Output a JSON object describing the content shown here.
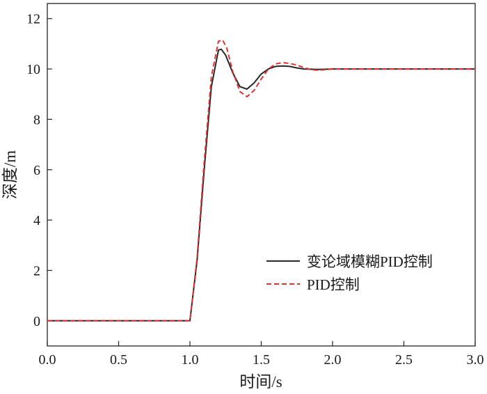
{
  "chart_data": {
    "type": "line",
    "xlabel": "时间/s",
    "ylabel": "深度/m",
    "xlim": [
      0,
      3
    ],
    "ylim": [
      -1,
      12.6
    ],
    "xticks": [
      "0.0",
      "0.5",
      "1.0",
      "1.5",
      "2.0",
      "2.5",
      "3.0"
    ],
    "yticks": [
      "0",
      "2",
      "4",
      "6",
      "8",
      "10",
      "12"
    ],
    "grid": false,
    "legend_position": "right-middle",
    "series": [
      {
        "name": "变论域模糊PID控制",
        "color": "#262626",
        "style": "solid",
        "points": [
          [
            0,
            0
          ],
          [
            1.0,
            0
          ],
          [
            1.05,
            2.4
          ],
          [
            1.1,
            6.0
          ],
          [
            1.15,
            9.3
          ],
          [
            1.2,
            10.75
          ],
          [
            1.22,
            10.78
          ],
          [
            1.25,
            10.55
          ],
          [
            1.3,
            9.85
          ],
          [
            1.35,
            9.3
          ],
          [
            1.4,
            9.2
          ],
          [
            1.45,
            9.45
          ],
          [
            1.5,
            9.8
          ],
          [
            1.55,
            10.0
          ],
          [
            1.6,
            10.1
          ],
          [
            1.65,
            10.12
          ],
          [
            1.7,
            10.1
          ],
          [
            1.75,
            10.04
          ],
          [
            1.8,
            10.0
          ],
          [
            1.9,
            9.98
          ],
          [
            2.0,
            10.0
          ],
          [
            2.5,
            10.0
          ],
          [
            3.0,
            10.0
          ]
        ]
      },
      {
        "name": "PID控制",
        "color": "#e03030",
        "style": "dashed",
        "points": [
          [
            0,
            0
          ],
          [
            1.0,
            0
          ],
          [
            1.05,
            2.5
          ],
          [
            1.1,
            6.3
          ],
          [
            1.15,
            9.7
          ],
          [
            1.2,
            11.1
          ],
          [
            1.23,
            11.15
          ],
          [
            1.26,
            10.8
          ],
          [
            1.3,
            9.9
          ],
          [
            1.35,
            9.1
          ],
          [
            1.4,
            8.9
          ],
          [
            1.45,
            9.15
          ],
          [
            1.5,
            9.6
          ],
          [
            1.55,
            10.0
          ],
          [
            1.6,
            10.2
          ],
          [
            1.65,
            10.25
          ],
          [
            1.7,
            10.22
          ],
          [
            1.75,
            10.15
          ],
          [
            1.8,
            10.05
          ],
          [
            1.85,
            9.97
          ],
          [
            1.9,
            9.95
          ],
          [
            2.0,
            10.0
          ],
          [
            2.5,
            10.0
          ],
          [
            3.0,
            10.0
          ]
        ]
      }
    ]
  }
}
